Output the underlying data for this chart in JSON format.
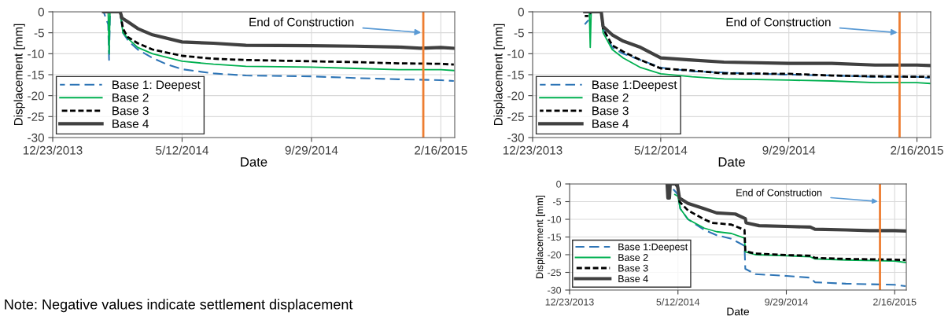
{
  "chart_data": [
    {
      "type": "line",
      "xlabel": "Date",
      "ylabel": "Displacement [mm]",
      "xlim": [
        "2013-12-23",
        "2015-03-03"
      ],
      "ylim": [
        -30,
        0
      ],
      "xticks": [
        {
          "value": "2013-12-23",
          "label": "12/23/2013"
        },
        {
          "value": "2014-05-12",
          "label": "5/12/2014"
        },
        {
          "value": "2014-09-29",
          "label": "9/29/2014"
        },
        {
          "value": "2015-02-16",
          "label": "2/16/2015"
        }
      ],
      "yticks": [
        0,
        -5,
        -10,
        -15,
        -20,
        -25,
        -30
      ],
      "grid": true,
      "legend": "bottom left",
      "ref_lines": [
        {
          "axis": "x",
          "value": "2015-01-28",
          "label": "End of Construction",
          "color": "#ed7d31"
        }
      ],
      "series": [
        {
          "name": "Base 1: Deepest",
          "color": "#2e75b6",
          "line_style": "dashed",
          "x": [
            "2014-02-16",
            "2014-02-21",
            "2014-02-22",
            "2014-02-23",
            "2014-03-06",
            "2014-03-09",
            "2014-03-15",
            "2014-03-25",
            "2014-04-10",
            "2014-04-25",
            "2014-05-12",
            "2014-06-15",
            "2014-07-20",
            "2014-09-29",
            "2014-11-15",
            "2015-01-01",
            "2015-02-16",
            "2015-03-02"
          ],
          "values": [
            0,
            -3,
            -11.5,
            0,
            0,
            -5,
            -7,
            -9,
            -11,
            -12.5,
            -13.7,
            -14.7,
            -15.2,
            -15.4,
            -15.8,
            -16.1,
            -16.3,
            -16.5
          ]
        },
        {
          "name": "Base 2",
          "color": "#00b050",
          "line_style": "solid",
          "x": [
            "2014-02-16",
            "2014-02-21",
            "2014-02-22",
            "2014-02-23",
            "2014-03-06",
            "2014-03-09",
            "2014-03-15",
            "2014-03-25",
            "2014-04-10",
            "2014-05-12",
            "2014-06-15",
            "2014-07-20",
            "2014-09-29",
            "2014-11-15",
            "2015-01-01",
            "2015-02-16",
            "2015-03-02"
          ],
          "values": [
            0,
            0,
            -10,
            0,
            0,
            -5,
            -6.5,
            -8.5,
            -10,
            -11.8,
            -12.5,
            -13,
            -13.2,
            -13.5,
            -13.8,
            -13.8,
            -14
          ]
        },
        {
          "name": "Base 3",
          "color": "#000000",
          "line_style": "dotted",
          "x": [
            "2014-02-16",
            "2014-03-06",
            "2014-03-09",
            "2014-03-14",
            "2014-03-25",
            "2014-04-10",
            "2014-05-12",
            "2014-06-15",
            "2014-07-20",
            "2014-09-29",
            "2014-11-15",
            "2015-01-01",
            "2015-02-16",
            "2015-03-02"
          ],
          "values": [
            0,
            0,
            -4,
            -6,
            -7.5,
            -9,
            -10.5,
            -11.2,
            -11.5,
            -11.8,
            -12,
            -12.3,
            -12.4,
            -12.6
          ]
        },
        {
          "name": "Base 4",
          "color": "#404040",
          "line_style": "solid",
          "x": [
            "2014-02-16",
            "2014-03-06",
            "2014-03-08",
            "2014-03-15",
            "2014-03-25",
            "2014-04-10",
            "2014-05-12",
            "2014-06-15",
            "2014-07-20",
            "2014-09-29",
            "2014-11-15",
            "2015-01-01",
            "2015-01-25",
            "2015-02-16",
            "2015-03-02"
          ],
          "values": [
            0,
            0,
            -1.5,
            -2.5,
            -4,
            -5.5,
            -7.2,
            -7.5,
            -8,
            -8.1,
            -8.2,
            -8.4,
            -8.7,
            -8.5,
            -8.7
          ]
        }
      ]
    },
    {
      "type": "line",
      "xlabel": "Date",
      "ylabel": "Displacement [mm]",
      "xlim": [
        "2013-12-23",
        "2015-03-03"
      ],
      "ylim": [
        -30,
        0
      ],
      "xticks": [
        {
          "value": "2013-12-23",
          "label": "12/23/2013"
        },
        {
          "value": "2014-05-12",
          "label": "5/12/2014"
        },
        {
          "value": "2014-09-29",
          "label": "9/29/2014"
        },
        {
          "value": "2015-02-16",
          "label": "2/16/2015"
        }
      ],
      "yticks": [
        0,
        -5,
        -10,
        -15,
        -20,
        -25,
        -30
      ],
      "grid": true,
      "legend": "bottom left",
      "ref_lines": [
        {
          "axis": "x",
          "value": "2015-01-28",
          "label": "End of Construction",
          "color": "#ed7d31"
        }
      ],
      "series": [
        {
          "name": "Base 1:Deepest",
          "color": "#2e75b6",
          "line_style": "dashed",
          "x": [
            "2014-02-18",
            "2014-02-22",
            "2014-02-25",
            "2014-03-08",
            "2014-03-10",
            "2014-03-20",
            "2014-04-01",
            "2014-04-20",
            "2014-05-12",
            "2014-06-15",
            "2014-07-20",
            "2014-09-29",
            "2014-11-15",
            "2015-01-01",
            "2015-02-16",
            "2015-03-02"
          ],
          "values": [
            -3,
            -2,
            0,
            0,
            -4,
            -8.5,
            -10,
            -11.5,
            -13.3,
            -14.2,
            -14.5,
            -15,
            -15.2,
            -15.5,
            -15.5,
            -15.8
          ]
        },
        {
          "name": "Base 2",
          "color": "#00b050",
          "line_style": "solid",
          "x": [
            "2014-02-18",
            "2014-02-23",
            "2014-02-24",
            "2014-02-25",
            "2014-03-08",
            "2014-03-10",
            "2014-03-20",
            "2014-04-01",
            "2014-04-20",
            "2014-05-12",
            "2014-06-15",
            "2014-07-20",
            "2014-09-29",
            "2014-11-15",
            "2015-01-01",
            "2015-02-16",
            "2015-03-02"
          ],
          "values": [
            0,
            0,
            -8.5,
            0,
            0,
            -5,
            -9,
            -11,
            -13.3,
            -14.8,
            -15.5,
            -16,
            -16.3,
            -16.5,
            -16.9,
            -16.9,
            -17.1
          ]
        },
        {
          "name": "Base 3",
          "color": "#000000",
          "line_style": "dotted",
          "x": [
            "2014-02-18",
            "2014-02-22",
            "2014-02-25",
            "2014-03-08",
            "2014-03-10",
            "2014-03-20",
            "2014-04-01",
            "2014-04-20",
            "2014-05-12",
            "2014-06-15",
            "2014-07-20",
            "2014-09-29",
            "2014-11-15",
            "2015-01-01",
            "2015-02-16",
            "2015-03-02"
          ],
          "values": [
            -1,
            -1,
            0,
            0,
            -4,
            -8,
            -9.5,
            -11.5,
            -13.5,
            -14,
            -14.7,
            -14.8,
            -15.2,
            -15.4,
            -15.5,
            -15.5
          ]
        },
        {
          "name": "Base 4",
          "color": "#404040",
          "line_style": "solid",
          "x": [
            "2014-02-18",
            "2014-03-08",
            "2014-03-10",
            "2014-03-20",
            "2014-04-01",
            "2014-04-20",
            "2014-05-12",
            "2014-06-15",
            "2014-07-20",
            "2014-09-29",
            "2014-11-15",
            "2015-01-01",
            "2015-02-16",
            "2015-03-02"
          ],
          "values": [
            0,
            0,
            -3.5,
            -5.5,
            -7,
            -8.5,
            -11,
            -11.5,
            -12,
            -12.3,
            -12.3,
            -12.7,
            -12.7,
            -12.8
          ]
        }
      ]
    },
    {
      "type": "line",
      "xlabel": "Date",
      "ylabel": "Displacement [mm]",
      "xlim": [
        "2013-12-23",
        "2015-03-03"
      ],
      "ylim": [
        -30,
        0
      ],
      "xticks": [
        {
          "value": "2013-12-23",
          "label": "12/23/2013"
        },
        {
          "value": "2014-05-12",
          "label": "5/12/2014"
        },
        {
          "value": "2014-09-29",
          "label": "9/29/2014"
        },
        {
          "value": "2015-02-16",
          "label": "2/16/2015"
        }
      ],
      "yticks": [
        0,
        -5,
        -10,
        -15,
        -20,
        -25,
        -30
      ],
      "grid": true,
      "legend": "bottom left",
      "ref_lines": [
        {
          "axis": "x",
          "value": "2015-01-28",
          "label": "End of Construction",
          "color": "#ed7d31"
        }
      ],
      "annotations": [
        "Note: Negative values indicate settlement displacement"
      ],
      "series": [
        {
          "name": "Base 1:Deepest",
          "color": "#2e75b6",
          "line_style": "dashed",
          "x": [
            "2014-05-06",
            "2014-05-12",
            "2014-05-15",
            "2014-05-25",
            "2014-06-15",
            "2014-07-01",
            "2014-07-20",
            "2014-08-06",
            "2014-08-07",
            "2014-08-20",
            "2014-09-29",
            "2014-10-30",
            "2014-11-05",
            "2014-12-15",
            "2015-02-16",
            "2015-03-02"
          ],
          "values": [
            -1.5,
            -3,
            -7,
            -10,
            -13,
            -14.5,
            -15.5,
            -17.5,
            -24,
            -25.5,
            -26,
            -26.5,
            -27.8,
            -28.2,
            -28.5,
            -28.9
          ]
        },
        {
          "name": "Base 2",
          "color": "#00b050",
          "line_style": "solid",
          "x": [
            "2014-05-08",
            "2014-05-12",
            "2014-05-15",
            "2014-05-25",
            "2014-06-15",
            "2014-07-01",
            "2014-07-20",
            "2014-08-06",
            "2014-08-07",
            "2014-08-20",
            "2014-09-29",
            "2014-10-30",
            "2014-11-05",
            "2014-12-15",
            "2015-02-16",
            "2015-03-02"
          ],
          "values": [
            -3,
            -3.5,
            -7,
            -10,
            -12.5,
            -13.5,
            -14,
            -15.3,
            -19.2,
            -20,
            -20.3,
            -20.6,
            -21.2,
            -21.5,
            -21.8,
            -22.2
          ]
        },
        {
          "name": "Base 3",
          "color": "#000000",
          "line_style": "dotted",
          "x": [
            "2014-05-08",
            "2014-05-12",
            "2014-05-14",
            "2014-05-25",
            "2014-06-15",
            "2014-06-25",
            "2014-07-20",
            "2014-08-06",
            "2014-08-07",
            "2014-08-20",
            "2014-09-29",
            "2014-10-30",
            "2014-11-05",
            "2014-12-15",
            "2015-02-16",
            "2015-03-02"
          ],
          "values": [
            0,
            -1,
            -5,
            -7.5,
            -10,
            -11,
            -11.5,
            -13,
            -19,
            -19.7,
            -20.1,
            -20.3,
            -20.9,
            -21.2,
            -21.4,
            -21.5
          ]
        },
        {
          "name": "Base 4",
          "color": "#404040",
          "line_style": "solid",
          "x": [
            "2014-04-28",
            "2014-04-29",
            "2014-05-01",
            "2014-05-02",
            "2014-05-11",
            "2014-05-14",
            "2014-05-25",
            "2014-06-15",
            "2014-07-01",
            "2014-07-25",
            "2014-08-07",
            "2014-08-08",
            "2014-08-25",
            "2014-09-29",
            "2014-10-30",
            "2014-11-05",
            "2014-12-15",
            "2015-01-15",
            "2015-02-16",
            "2015-03-02"
          ],
          "values": [
            0,
            -4,
            -4,
            0,
            0,
            -4,
            -5.5,
            -7,
            -8.2,
            -8.5,
            -9.8,
            -11,
            -11.8,
            -12,
            -12.2,
            -12.8,
            -13,
            -13.2,
            -13.2,
            -13.3
          ]
        }
      ]
    }
  ]
}
